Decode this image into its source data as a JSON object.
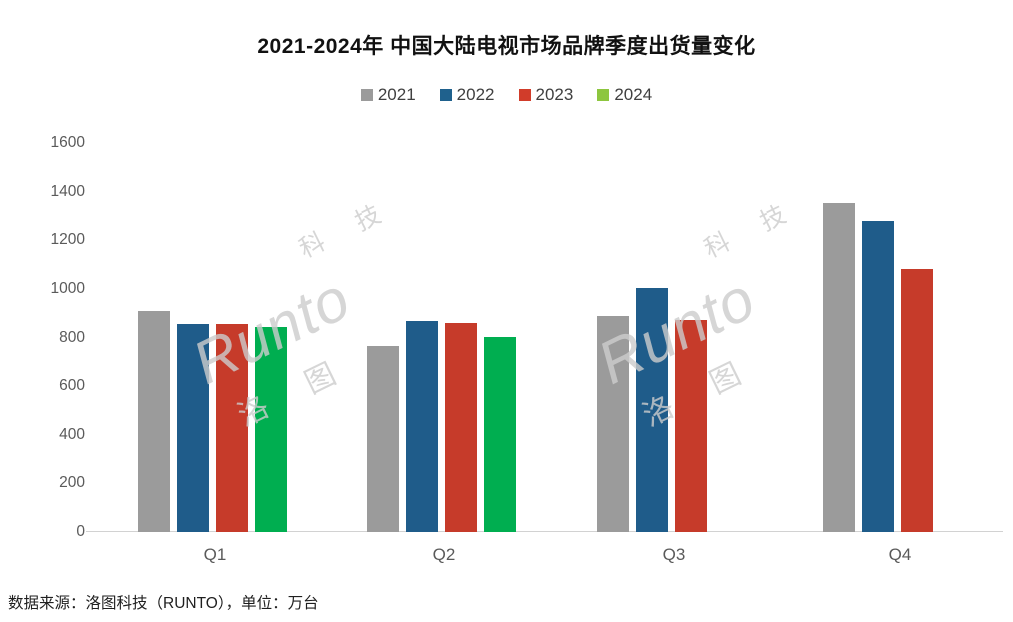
{
  "title": "2021-2024年 中国大陆电视市场品牌季度出货量变化",
  "source_note": "数据来源：洛图科技（RUNTO），单位：万台",
  "watermark": {
    "brand": "Runto",
    "cn_left": "洛 图",
    "cn_right": "科 技"
  },
  "colors": {
    "series_2021": "#9B9B9B",
    "series_2022": "#1F5C8A",
    "series_2023": "#C63B2A",
    "series_2024_bar": "#00AE50",
    "series_2024_swatch": "#8DC63F",
    "axis_text": "#5a5a5a",
    "axis_line": "#d2d2d2",
    "watermark_gray": "#cdcdcd"
  },
  "chart_data": {
    "type": "bar",
    "title": "2021-2024年 中国大陆电视市场品牌季度出货量变化",
    "unit": "万台",
    "categories": [
      "Q1",
      "Q2",
      "Q3",
      "Q4"
    ],
    "series": [
      {
        "name": "2021",
        "color": "#9B9B9B",
        "swatch": "#9B9B9B",
        "values": [
          910,
          765,
          889,
          1355
        ]
      },
      {
        "name": "2022",
        "color": "#1F5C8A",
        "swatch": "#1F618D",
        "values": [
          857,
          866,
          1002,
          1279
        ]
      },
      {
        "name": "2023",
        "color": "#C63B2A",
        "swatch": "#D13C2A",
        "values": [
          855,
          861,
          872,
          1081
        ]
      },
      {
        "name": "2024",
        "color": "#00AE50",
        "swatch": "#8DC63F",
        "values": [
          844,
          802,
          null,
          null
        ]
      }
    ],
    "y_ticks": [
      0,
      200,
      400,
      600,
      800,
      1000,
      1200,
      1400,
      1600
    ],
    "ylim": [
      0,
      1600
    ],
    "xlabel": "",
    "ylabel": "",
    "grid": false,
    "legend_position": "top"
  }
}
